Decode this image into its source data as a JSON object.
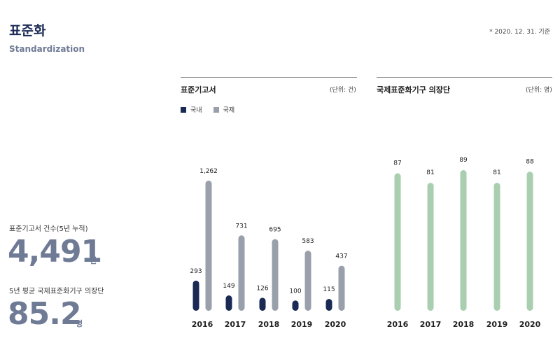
{
  "header": {
    "title": "표준화",
    "subtitle": "Standardization",
    "as_of": "* 2020. 12. 31. 기준"
  },
  "stats": [
    {
      "label": "표준기고서 건수(5년 누적)",
      "value": "4,491",
      "unit": "건"
    },
    {
      "label": "5년 평균 국제표준화기구 의장단",
      "value": "85.2",
      "unit": "명"
    }
  ],
  "colors": {
    "domestic": "#1b2a55",
    "international": "#9aa0ab",
    "chair": "#a9cfb0"
  },
  "chart_data": [
    {
      "type": "bar",
      "title": "표준기고서",
      "unit_label": "(단위: 건)",
      "categories": [
        "2016",
        "2017",
        "2018",
        "2019",
        "2020"
      ],
      "series": [
        {
          "name": "국내",
          "values": [
            293,
            149,
            126,
            100,
            115
          ],
          "value_labels": [
            "293",
            "149",
            "126",
            "100",
            "115"
          ]
        },
        {
          "name": "국제",
          "values": [
            1262,
            731,
            695,
            583,
            437
          ],
          "value_labels": [
            "1,262",
            "731",
            "695",
            "583",
            "437"
          ]
        }
      ],
      "legend_placement": "top-left",
      "grid": false
    },
    {
      "type": "bar",
      "title": "국제표준화기구 의장단",
      "unit_label": "(단위: 명)",
      "categories": [
        "2016",
        "2017",
        "2018",
        "2019",
        "2020"
      ],
      "series": [
        {
          "values": [
            87,
            81,
            89,
            81,
            88
          ],
          "value_labels": [
            "87",
            "81",
            "89",
            "81",
            "88"
          ]
        }
      ],
      "grid": false
    }
  ]
}
